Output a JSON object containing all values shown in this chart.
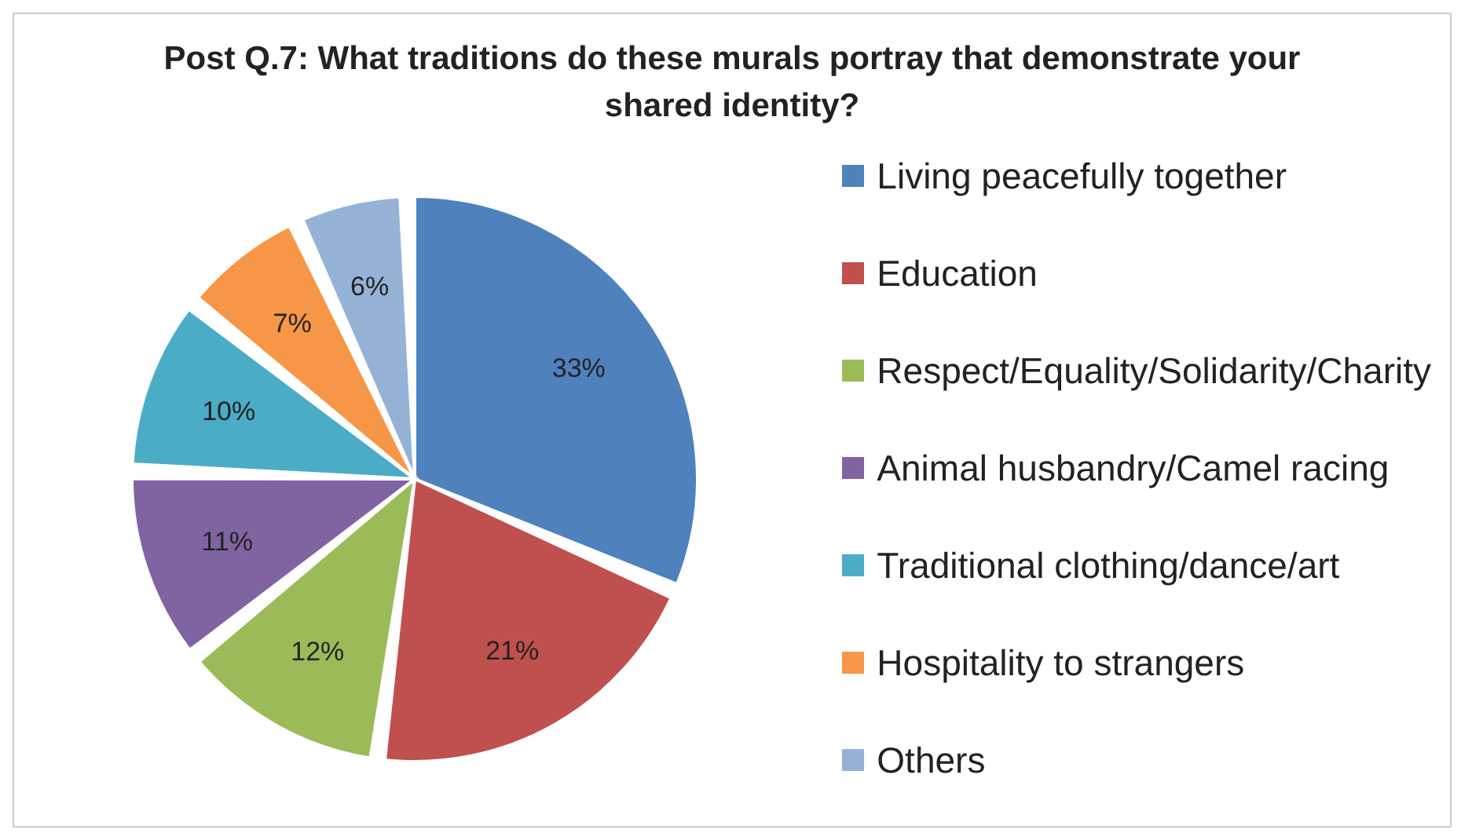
{
  "chart_data": {
    "type": "pie",
    "title": "Post Q.7: What traditions do these murals portray that demonstrate your shared identity?",
    "categories": [
      "Living peacefully together",
      "Education",
      "Respect/Equality/Solidarity/Charity",
      "Animal husbandry/Camel racing",
      "Traditional clothing/dance/art",
      "Hospitality to strangers",
      "Others"
    ],
    "values": [
      33,
      21,
      12,
      11,
      10,
      7,
      6
    ],
    "colors": [
      "#4f81bd",
      "#c0504d",
      "#9bbb59",
      "#8064a2",
      "#4bacc6",
      "#f79646",
      "#95b3d7"
    ],
    "value_labels": [
      "33%",
      "21%",
      "12%",
      "11%",
      "10%",
      "7%",
      "6%"
    ],
    "legend": "right"
  }
}
